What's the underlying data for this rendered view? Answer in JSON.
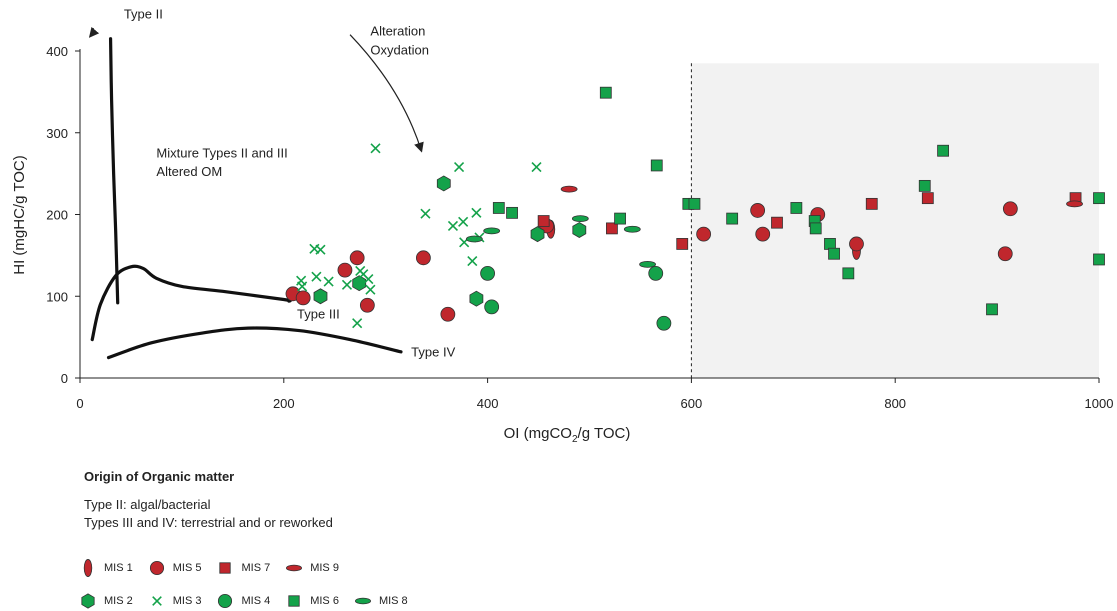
{
  "chart_data": {
    "type": "scatter",
    "xlabel_main": "OI (mgCO",
    "xlabel_sub": "2",
    "xlabel_tail": "/g TOC)",
    "ylabel": "HI (mgHC/g TOC)",
    "xlim": [
      0,
      1000
    ],
    "ylim": [
      0,
      400
    ],
    "x_ticks": [
      0,
      200,
      400,
      600,
      800,
      1000
    ],
    "y_ticks": [
      0,
      100,
      200,
      300,
      400
    ],
    "shaded_region": {
      "x_from": 600,
      "x_to": 1000,
      "y_from": 0,
      "y_to": 385,
      "color": "#f2f2f2"
    },
    "divider_x": 600,
    "colors": {
      "red": "#c0272d",
      "green": "#14a24a",
      "edge": "#333333"
    },
    "curves": [
      {
        "label": "Type II",
        "points": [
          [
            30,
            415
          ],
          [
            31,
            340
          ],
          [
            33,
            250
          ],
          [
            35,
            180
          ],
          [
            37,
            92
          ]
        ]
      },
      {
        "label": "Type III",
        "points": [
          [
            12,
            47
          ],
          [
            20,
            90
          ],
          [
            35,
            125
          ],
          [
            50,
            136
          ],
          [
            62,
            134
          ],
          [
            75,
            122
          ],
          [
            100,
            112
          ],
          [
            140,
            106
          ],
          [
            200,
            96
          ],
          [
            205,
            94
          ]
        ]
      },
      {
        "label": "Type IV",
        "points": [
          [
            28,
            25
          ],
          [
            70,
            43
          ],
          [
            120,
            55
          ],
          [
            165,
            61
          ],
          [
            215,
            58
          ],
          [
            265,
            47
          ],
          [
            315,
            32
          ]
        ]
      }
    ],
    "annotations": [
      {
        "text": "Type II",
        "x": 43,
        "y": 440
      },
      {
        "text": "Alteration",
        "x": 285,
        "y": 419
      },
      {
        "text": "Oxydation",
        "x": 285,
        "y": 396
      },
      {
        "text": "Mixture Types II  and III",
        "x": 75,
        "y": 270
      },
      {
        "text": "Altered OM",
        "x": 75,
        "y": 247
      },
      {
        "text": "Type III",
        "x": 213,
        "y": 73
      },
      {
        "text": "Type IV",
        "x": 325,
        "y": 26
      }
    ],
    "arrows": [
      {
        "from": [
          13,
          428
        ],
        "to": [
          10,
          418
        ]
      },
      {
        "from": [
          265,
          420
        ],
        "to": [
          335,
          278
        ]
      }
    ],
    "series": [
      {
        "name": "MIS 1",
        "marker": "v-ellipse",
        "color": "red",
        "points": [
          [
            462,
            182
          ],
          [
            762,
            156
          ]
        ]
      },
      {
        "name": "MIS 5",
        "marker": "circle",
        "color": "red",
        "points": [
          [
            209,
            103
          ],
          [
            219,
            98
          ],
          [
            260,
            132
          ],
          [
            272,
            147
          ],
          [
            282,
            89
          ],
          [
            337,
            147
          ],
          [
            361,
            78
          ],
          [
            458,
            186
          ],
          [
            612,
            176
          ],
          [
            665,
            205
          ],
          [
            670,
            176
          ],
          [
            724,
            200
          ],
          [
            762,
            164
          ],
          [
            908,
            152
          ],
          [
            913,
            207
          ]
        ]
      },
      {
        "name": "MIS 7",
        "marker": "square",
        "color": "red",
        "points": [
          [
            455,
            192
          ],
          [
            522,
            183
          ],
          [
            591,
            164
          ],
          [
            684,
            190
          ],
          [
            777,
            213
          ],
          [
            832,
            220
          ],
          [
            977,
            220
          ]
        ]
      },
      {
        "name": "MIS 9",
        "marker": "h-ellipse",
        "color": "red",
        "points": [
          [
            480,
            231
          ],
          [
            976,
            213
          ]
        ]
      },
      {
        "name": "MIS 2",
        "marker": "hexagon",
        "color": "green",
        "points": [
          [
            236,
            100
          ],
          [
            274,
            116
          ],
          [
            357,
            238
          ],
          [
            389,
            97
          ],
          [
            449,
            176
          ],
          [
            490,
            181
          ]
        ]
      },
      {
        "name": "MIS 3",
        "marker": "cross",
        "color": "green",
        "points": [
          [
            217,
            119
          ],
          [
            218,
            112
          ],
          [
            230,
            158
          ],
          [
            232,
            124
          ],
          [
            236,
            157
          ],
          [
            244,
            118
          ],
          [
            262,
            114
          ],
          [
            272,
            67
          ],
          [
            275,
            131
          ],
          [
            278,
            127
          ],
          [
            283,
            121
          ],
          [
            285,
            108
          ],
          [
            290,
            281
          ],
          [
            339,
            201
          ],
          [
            366,
            186
          ],
          [
            372,
            258
          ],
          [
            376,
            191
          ],
          [
            377,
            166
          ],
          [
            385,
            143
          ],
          [
            389,
            202
          ],
          [
            392,
            172
          ],
          [
            448,
            258
          ]
        ]
      },
      {
        "name": "MIS 4",
        "marker": "circle",
        "color": "green",
        "points": [
          [
            400,
            128
          ],
          [
            404,
            87
          ],
          [
            565,
            128
          ],
          [
            573,
            67
          ]
        ]
      },
      {
        "name": "MIS 6",
        "marker": "square",
        "color": "green",
        "points": [
          [
            411,
            208
          ],
          [
            424,
            202
          ],
          [
            516,
            349
          ],
          [
            530,
            195
          ],
          [
            566,
            260
          ],
          [
            597,
            213
          ],
          [
            603,
            213
          ],
          [
            640,
            195
          ],
          [
            703,
            208
          ],
          [
            721,
            192
          ],
          [
            722,
            183
          ],
          [
            736,
            164
          ],
          [
            740,
            152
          ],
          [
            754,
            128
          ],
          [
            829,
            235
          ],
          [
            847,
            278
          ],
          [
            895,
            84
          ],
          [
            1000,
            220
          ],
          [
            1000,
            145
          ]
        ]
      },
      {
        "name": "MIS 8",
        "marker": "h-ellipse",
        "color": "green",
        "points": [
          [
            387,
            170
          ],
          [
            404,
            180
          ],
          [
            491,
            195
          ],
          [
            542,
            182
          ],
          [
            557,
            139
          ]
        ]
      }
    ]
  },
  "legend": {
    "title": "Origin of Organic matter",
    "notes": [
      "Type II: algal/bacterial",
      "Types III and IV: terrestrial and or reworked"
    ],
    "row1": [
      "MIS 1",
      "MIS 5",
      "MIS 7",
      "MIS 9"
    ],
    "row2": [
      "MIS 2",
      "MIS 3",
      "MIS 4",
      "MIS 6",
      "MIS 8"
    ]
  }
}
